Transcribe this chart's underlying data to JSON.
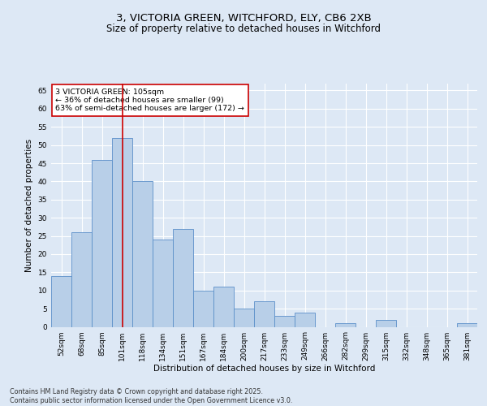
{
  "title_line1": "3, VICTORIA GREEN, WITCHFORD, ELY, CB6 2XB",
  "title_line2": "Size of property relative to detached houses in Witchford",
  "xlabel": "Distribution of detached houses by size in Witchford",
  "ylabel": "Number of detached properties",
  "categories": [
    "52sqm",
    "68sqm",
    "85sqm",
    "101sqm",
    "118sqm",
    "134sqm",
    "151sqm",
    "167sqm",
    "184sqm",
    "200sqm",
    "217sqm",
    "233sqm",
    "249sqm",
    "266sqm",
    "282sqm",
    "299sqm",
    "315sqm",
    "332sqm",
    "348sqm",
    "365sqm",
    "381sqm"
  ],
  "values": [
    14,
    26,
    46,
    52,
    40,
    24,
    27,
    10,
    11,
    5,
    7,
    3,
    4,
    0,
    1,
    0,
    2,
    0,
    0,
    0,
    1
  ],
  "bar_color": "#b8cfe8",
  "bar_edge_color": "#5b8fc9",
  "highlight_bar_index": 3,
  "highlight_color": "#cc0000",
  "annotation_text": "3 VICTORIA GREEN: 105sqm\n← 36% of detached houses are smaller (99)\n63% of semi-detached houses are larger (172) →",
  "annotation_box_color": "#ffffff",
  "annotation_box_edge_color": "#cc0000",
  "ylim": [
    0,
    67
  ],
  "yticks": [
    0,
    5,
    10,
    15,
    20,
    25,
    30,
    35,
    40,
    45,
    50,
    55,
    60,
    65
  ],
  "background_color": "#dde8f5",
  "grid_color": "#ffffff",
  "footer_text": "Contains HM Land Registry data © Crown copyright and database right 2025.\nContains public sector information licensed under the Open Government Licence v3.0.",
  "title_fontsize": 9.5,
  "subtitle_fontsize": 8.5,
  "axis_label_fontsize": 7.5,
  "tick_fontsize": 6.5,
  "annotation_fontsize": 6.8,
  "footer_fontsize": 5.8
}
